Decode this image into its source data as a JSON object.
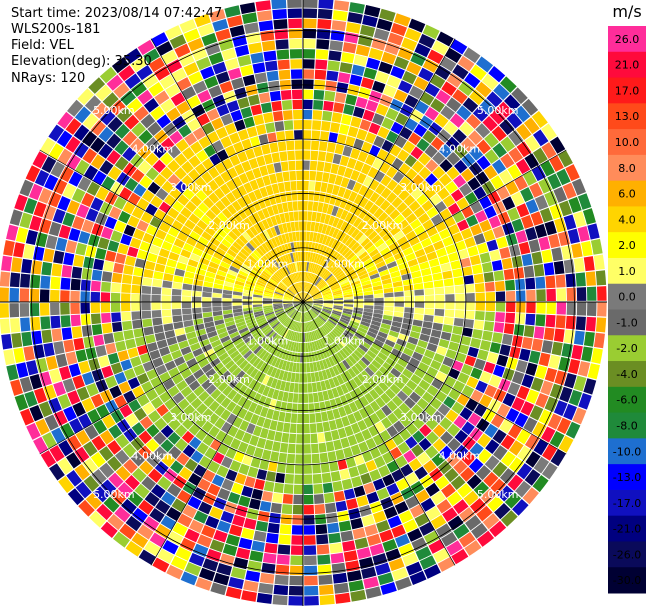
{
  "header": {
    "start_time": "Start time: 2023/08/14 07:42:47",
    "instrument": "WLS200s-181",
    "field": "Field: VEL",
    "elevation": "Elevation(deg): 35.30",
    "nrays": "NRays: 120"
  },
  "colorbar": {
    "unit": "m/s",
    "ticks": [
      "26.0",
      "21.0",
      "17.0",
      "13.0",
      "10.0",
      "8.0",
      "6.0",
      "4.0",
      "2.0",
      "1.0",
      "0.0",
      "-1.0",
      "-2.0",
      "-4.0",
      "-6.0",
      "-8.0",
      "-10.0",
      "-13.0",
      "-17.0",
      "-21.0",
      "-26.0",
      "-30.0"
    ],
    "colors": [
      "#ff2d9a",
      "#ff0a3c",
      "#ff1a1a",
      "#ff4a1a",
      "#ff6a3a",
      "#ff8c5a",
      "#ffb000",
      "#ffd400",
      "#ffff00",
      "#ffff66",
      "#7a7a7a",
      "#6a6a6a",
      "#9acd32",
      "#6b8e23",
      "#228b22",
      "#1f8a3a",
      "#1e6fd0",
      "#0000ff",
      "#1010c0",
      "#000080",
      "#0a0a5a",
      "#000033"
    ]
  },
  "range_rings": {
    "labels": [
      "1.00km",
      "2.00km",
      "3.00km",
      "4.00km",
      "5.00km"
    ]
  },
  "chart_data": {
    "type": "heatmap",
    "title": "",
    "field": "VEL",
    "units": "m/s",
    "nrays": 120,
    "elevation_deg": 35.3,
    "range_rings_km": [
      1,
      2,
      3,
      4,
      5
    ],
    "vmin": -30.0,
    "vmax": 26.0,
    "pattern": "near-range velocities in the 0 to 4 m/s band toward the north and -1 to -4 m/s toward the south; beyond about 3 km noise of random colors"
  }
}
